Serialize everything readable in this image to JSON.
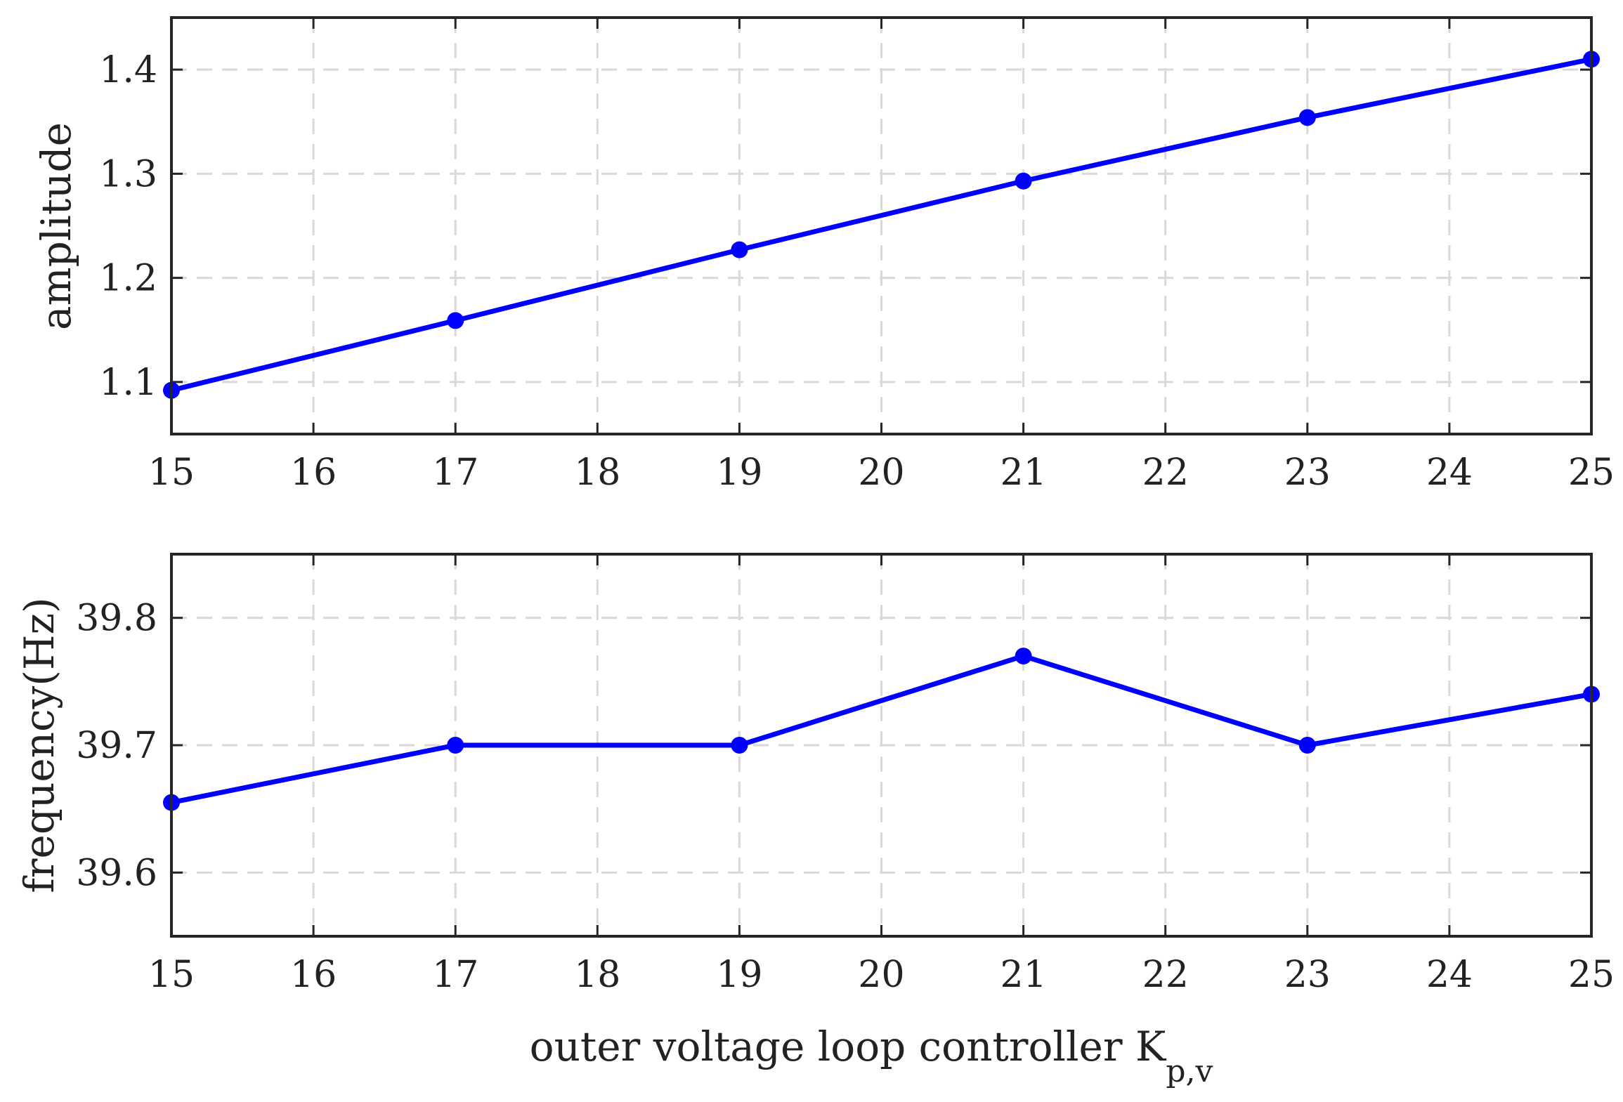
{
  "chart_data": [
    {
      "type": "line",
      "ylabel": "amplitude",
      "xlabel": "",
      "x": [
        15,
        17,
        19,
        21,
        23,
        25
      ],
      "series": [
        {
          "values": [
            1.092,
            1.159,
            1.227,
            1.293,
            1.354,
            1.41
          ],
          "color": "#0000ff",
          "marker": "circle"
        }
      ],
      "xlim": [
        15,
        25
      ],
      "ylim": [
        1.05,
        1.45
      ],
      "xticks": [
        15,
        16,
        17,
        18,
        19,
        20,
        21,
        22,
        23,
        24,
        25
      ],
      "xtick_labels": [
        "15",
        "16",
        "17",
        "18",
        "19",
        "20",
        "21",
        "22",
        "23",
        "24",
        "25"
      ],
      "yticks": [
        1.1,
        1.2,
        1.3,
        1.4
      ],
      "ytick_labels": [
        "1.1",
        "1.2",
        "1.3",
        "1.4"
      ],
      "grid": true
    },
    {
      "type": "line",
      "ylabel": "frequency(Hz)",
      "xlabel": "outer voltage loop controller K",
      "xlabel_subscript": "p,v",
      "x": [
        15,
        17,
        19,
        21,
        23,
        25
      ],
      "series": [
        {
          "values": [
            39.655,
            39.7,
            39.7,
            39.77,
            39.7,
            39.74
          ],
          "color": "#0000ff",
          "marker": "circle"
        }
      ],
      "xlim": [
        15,
        25
      ],
      "ylim": [
        39.55,
        39.85
      ],
      "xticks": [
        15,
        16,
        17,
        18,
        19,
        20,
        21,
        22,
        23,
        24,
        25
      ],
      "xtick_labels": [
        "15",
        "16",
        "17",
        "18",
        "19",
        "20",
        "21",
        "22",
        "23",
        "24",
        "25"
      ],
      "yticks": [
        39.6,
        39.7,
        39.8
      ],
      "ytick_labels": [
        "39.6",
        "39.7",
        "39.8"
      ],
      "grid": true
    }
  ]
}
